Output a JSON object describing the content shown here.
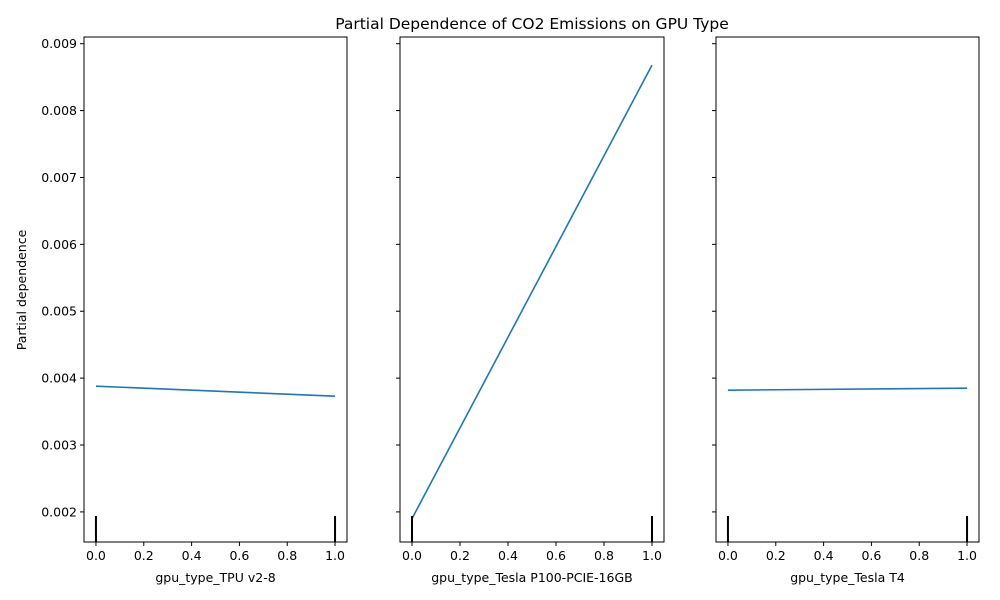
{
  "chart_data": {
    "type": "line",
    "title": "Partial Dependence of CO2 Emissions on GPU Type",
    "ylabel": "Partial dependence",
    "ylim": [
      0.00155,
      0.0091
    ],
    "yticks": [
      0.002,
      0.003,
      0.004,
      0.005,
      0.006,
      0.007,
      0.008,
      0.009
    ],
    "ytick_labels": [
      "0.002",
      "0.003",
      "0.004",
      "0.005",
      "0.006",
      "0.007",
      "0.008",
      "0.009"
    ],
    "xlim": [
      -0.05,
      1.05
    ],
    "xticks": [
      0.0,
      0.2,
      0.4,
      0.6,
      0.8,
      1.0
    ],
    "xtick_labels": [
      "0.0",
      "0.2",
      "0.4",
      "0.6",
      "0.8",
      "1.0"
    ],
    "color": "#1f77b4",
    "panels": [
      {
        "xlabel": "gpu_type_TPU v2-8",
        "x": [
          0,
          1
        ],
        "y": [
          0.00388,
          0.00373
        ],
        "rug": [
          0,
          1
        ]
      },
      {
        "xlabel": "gpu_type_Tesla P100-PCIE-16GB",
        "x": [
          0,
          1
        ],
        "y": [
          0.0019,
          0.00868
        ],
        "rug": [
          0,
          1
        ]
      },
      {
        "xlabel": "gpu_type_Tesla T4",
        "x": [
          0,
          1
        ],
        "y": [
          0.00382,
          0.00385
        ],
        "rug": [
          0,
          1
        ]
      }
    ]
  }
}
